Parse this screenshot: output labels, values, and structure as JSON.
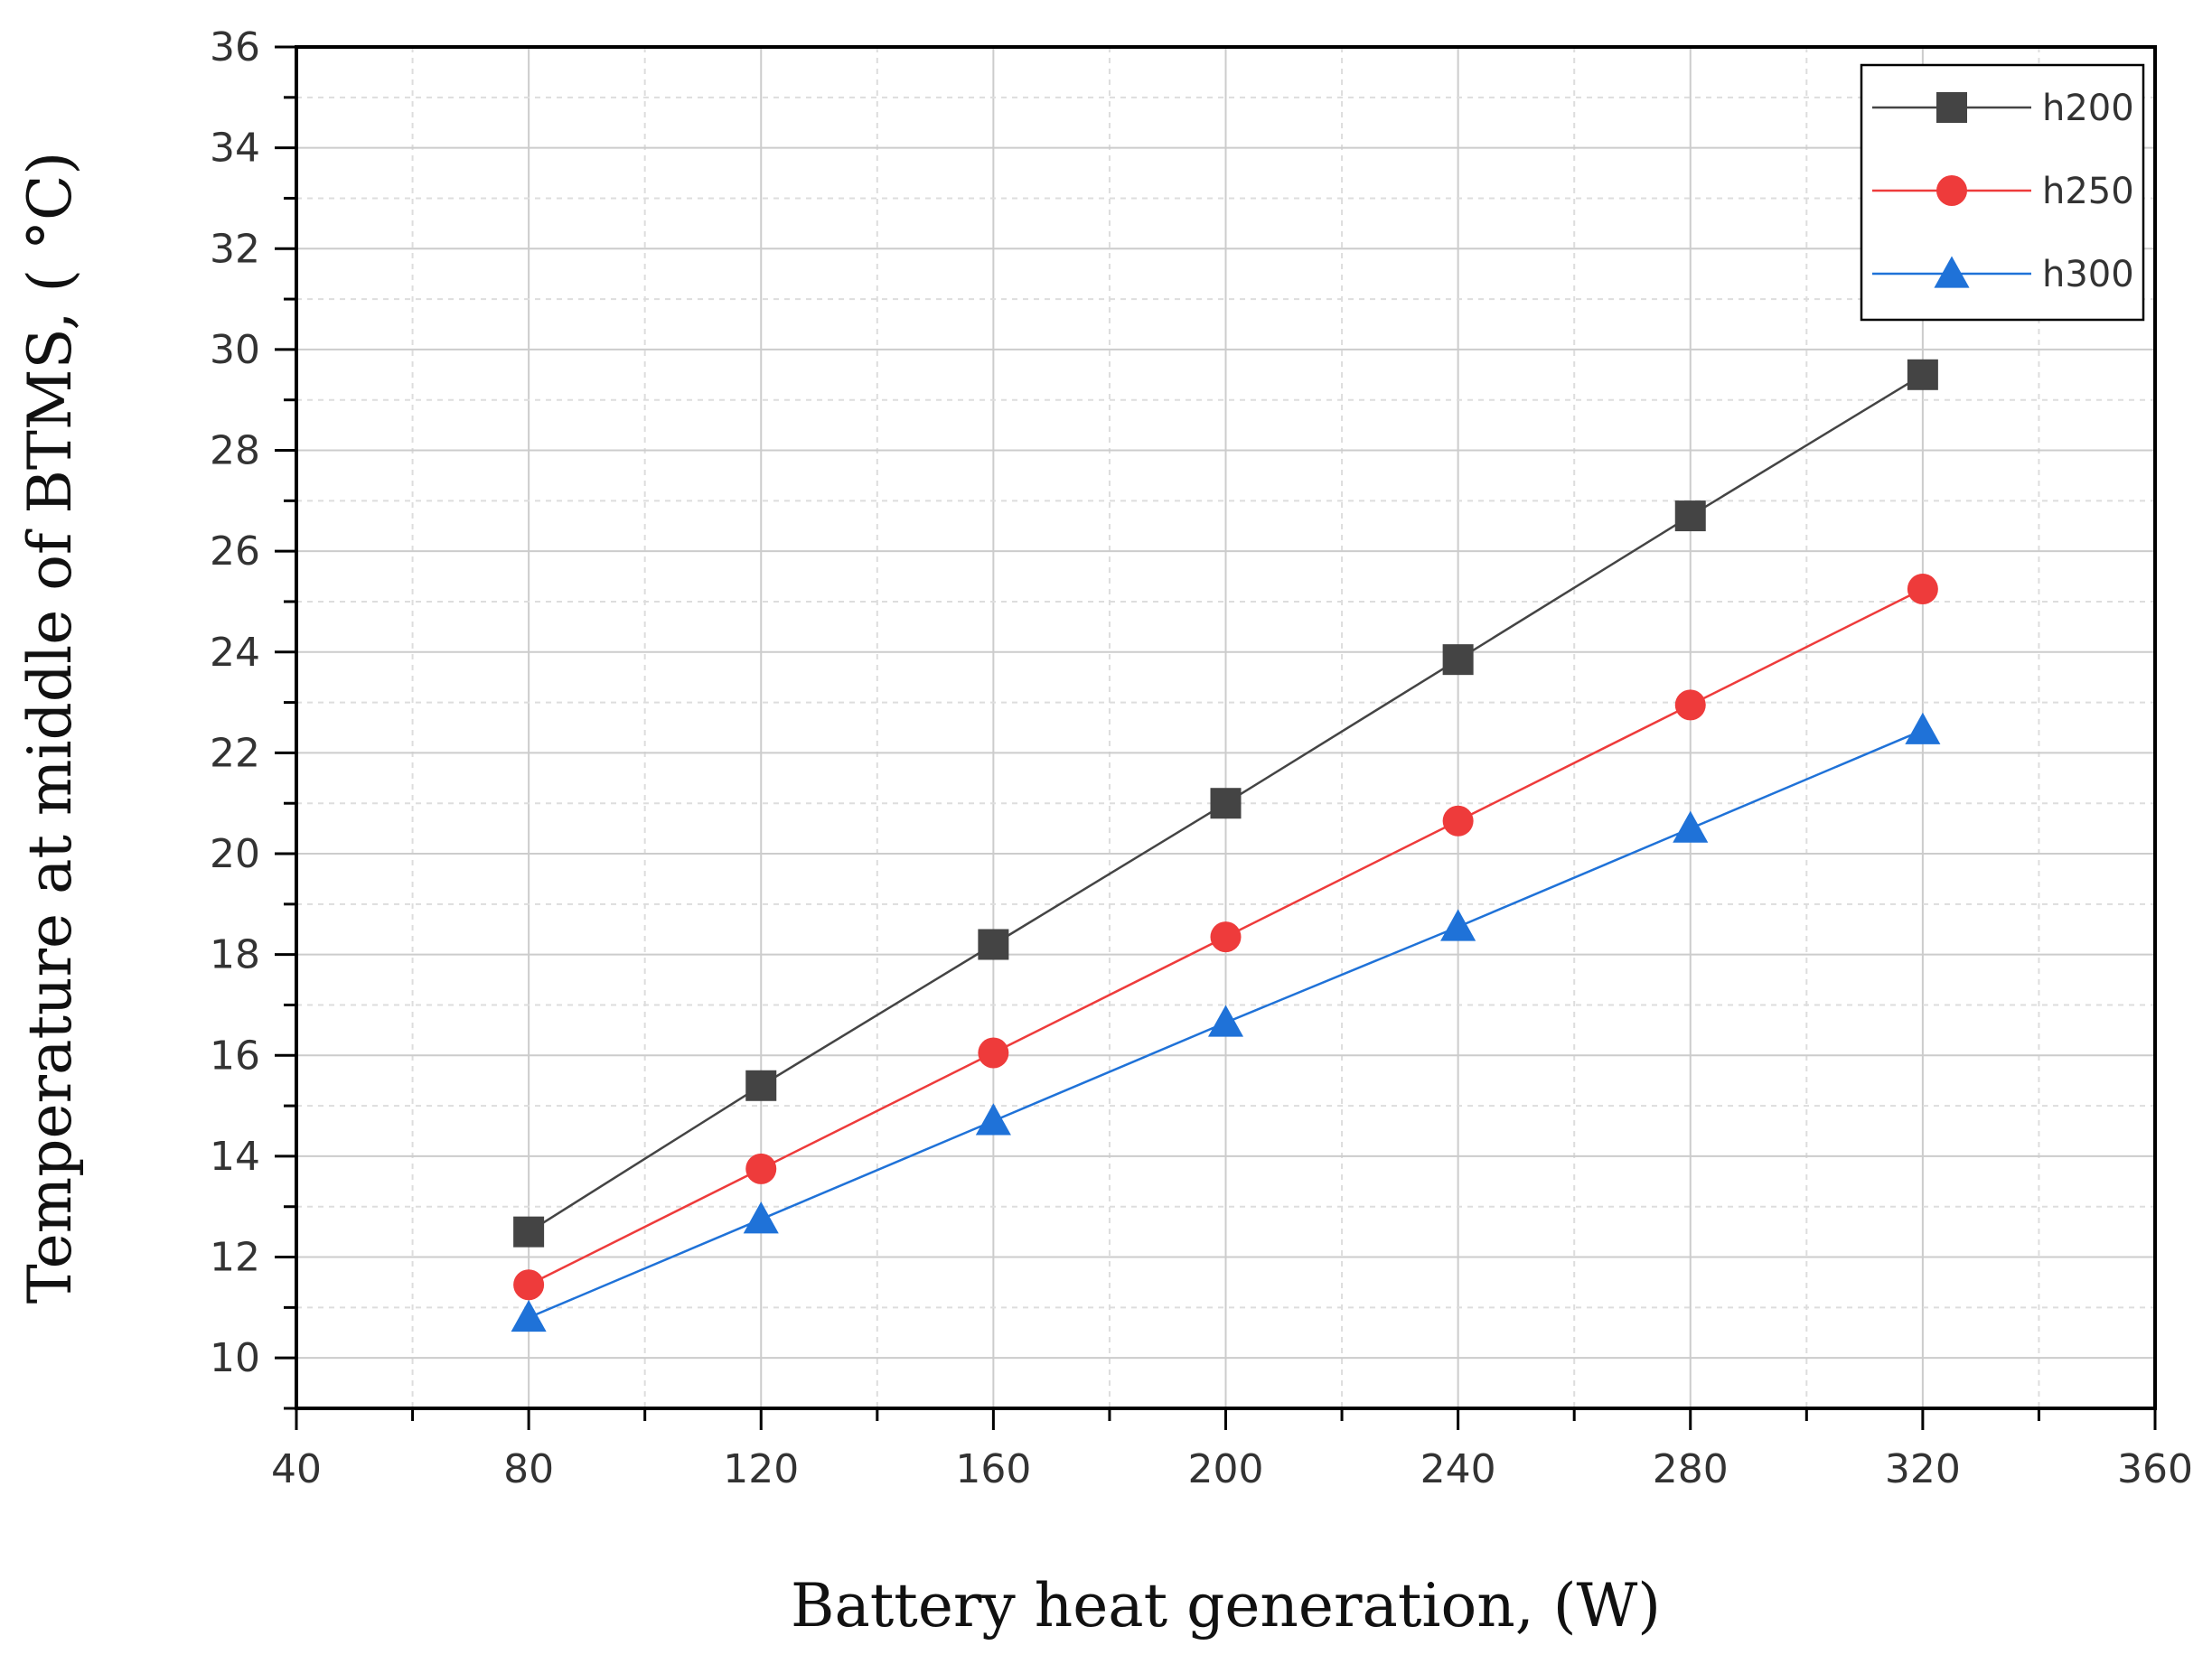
{
  "chart_data": {
    "type": "line",
    "title": "",
    "xlabel": "Battery heat generation, (W)",
    "ylabel": "Temperature at middle of BTMS, ( °C)",
    "xlim": [
      40,
      360
    ],
    "ylim": [
      9,
      36
    ],
    "xticks": [
      40,
      80,
      120,
      160,
      200,
      240,
      280,
      320,
      360
    ],
    "yticks": [
      10,
      12,
      14,
      16,
      18,
      20,
      22,
      24,
      26,
      28,
      30,
      32,
      34,
      36
    ],
    "grid": true,
    "legend_position": "top-right",
    "x": [
      80,
      120,
      160,
      200,
      240,
      280,
      320
    ],
    "series": [
      {
        "name": "h200",
        "marker": "square",
        "color": "#444444",
        "values": [
          12.5,
          15.4,
          18.2,
          21.0,
          23.85,
          26.7,
          29.5
        ]
      },
      {
        "name": "h250",
        "marker": "circle",
        "color": "#ee3b3b",
        "values": [
          11.45,
          13.75,
          16.05,
          18.35,
          20.65,
          22.95,
          25.25
        ]
      },
      {
        "name": "h300",
        "marker": "triangle",
        "color": "#1f72d8",
        "values": [
          10.8,
          12.75,
          14.7,
          16.65,
          18.55,
          20.5,
          22.45
        ]
      }
    ]
  }
}
